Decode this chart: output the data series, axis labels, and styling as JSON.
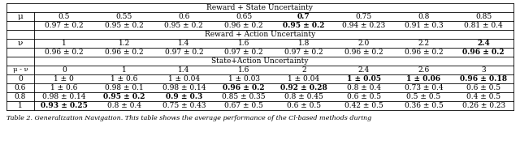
{
  "sections": [
    {
      "header": "Reward + State Uncertainty",
      "row_label": "μ",
      "col_headers": [
        "0.5",
        "0.55",
        "0.6",
        "0.65",
        "0.7",
        "0.75",
        "0.8",
        "0.85"
      ],
      "col_header_bold": [
        false,
        false,
        false,
        false,
        true,
        false,
        false,
        false
      ],
      "rows": [
        [
          "0.97 ± 0.2",
          "0.95 ± 0.2",
          "0.95 ± 0.2",
          "0.96 ± 0.2",
          "0.95 ± 0.2",
          "0.94 ± 0.23",
          "0.91 ± 0.3",
          "0.81 ± 0.4"
        ]
      ],
      "row_bold": [
        [
          false,
          false,
          false,
          false,
          true,
          false,
          false,
          false
        ]
      ]
    },
    {
      "header": "Reward + Action Uncertainty",
      "row_label": "ν",
      "col_headers": [
        "1",
        "1.2",
        "1.4",
        "1.6",
        "1.8",
        "2.0",
        "2.2",
        "2.4"
      ],
      "col_header_bold": [
        false,
        false,
        false,
        false,
        false,
        false,
        false,
        true
      ],
      "rows": [
        [
          "0.96 ± 0.2",
          "0.96 ± 0.2",
          "0.97 ± 0.2",
          "0.97 ± 0.2",
          "0.97 ± 0.2",
          "0.96 ± 0.2",
          "0.96 ± 0.2",
          "0.96 ± 0.2"
        ]
      ],
      "row_bold": [
        [
          false,
          false,
          false,
          false,
          false,
          false,
          false,
          true
        ]
      ]
    },
    {
      "header": "State+Action Uncertainty",
      "row_label": "μ - ν",
      "col_headers": [
        "0",
        "1",
        "1.4",
        "1.6",
        "2",
        "2.4",
        "2.6",
        "3"
      ],
      "col_header_bold": [
        false,
        false,
        false,
        false,
        false,
        false,
        false,
        false
      ],
      "row_labels": [
        "0",
        "0.6",
        "0.8",
        "1"
      ],
      "rows": [
        [
          "1 ± 0",
          "1 ± 0.6",
          "1 ± 0.04",
          "1 ± 0.03",
          "1 ± 0.04",
          "1 ± 0.05",
          "1 ± 0.06",
          "0.96 ± 0.18"
        ],
        [
          "1 ± 0.6",
          "0.98 ± 0.1",
          "0.98 ± 0.14",
          "0.96 ± 0.2",
          "0.92 ± 0.28",
          "0.8 ± 0.4",
          "0.73 ± 0.4",
          "0.6 ± 0.5"
        ],
        [
          "0.98 ± 0.14",
          "0.95 ± 0.2",
          "0.9 ± 0.3",
          "0.85 ± 0.35",
          "0.8 ± 0.45",
          "0.6 ± 0.5",
          "0.5 ± 0.5",
          "0.4 ± 0.5"
        ],
        [
          "0.93 ± 0.25",
          "0.8 ± 0.4",
          "0.75 ± 0.43",
          "0.67 ± 0.5",
          "0.6 ± 0.5",
          "0.42 ± 0.5",
          "0.36 ± 0.5",
          "0.26 ± 0.23"
        ]
      ],
      "row_bold": [
        [
          false,
          false,
          false,
          false,
          false,
          true,
          true,
          true
        ],
        [
          false,
          false,
          false,
          true,
          true,
          false,
          false,
          false
        ],
        [
          false,
          true,
          true,
          false,
          false,
          false,
          false,
          false
        ],
        [
          true,
          false,
          false,
          false,
          false,
          false,
          false,
          false
        ]
      ]
    }
  ],
  "caption": "Table 2. Generalization Navigation. This table shows the average performance of the Cl-based methods during",
  "font_size": 6.5
}
